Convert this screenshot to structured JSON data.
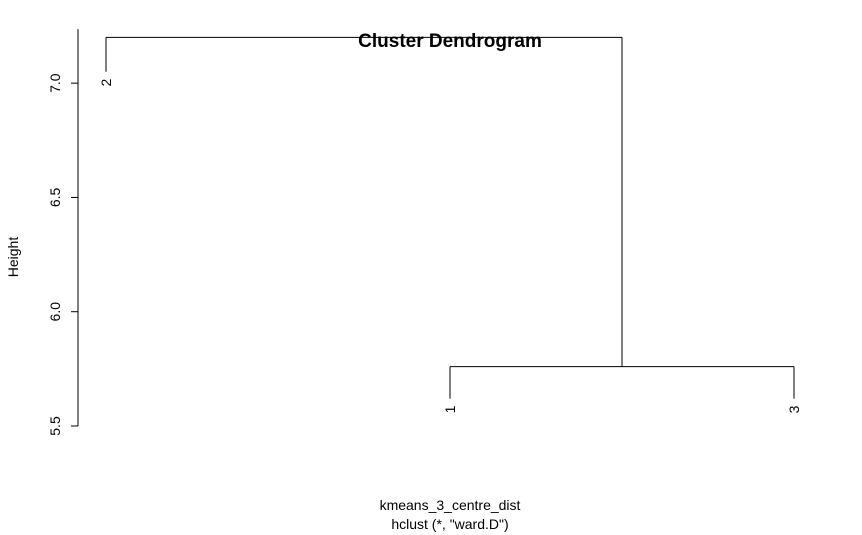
{
  "chart_data": {
    "type": "dendrogram",
    "title": "Cluster Dendrogram",
    "xlabel": "kmeans_3_centre_dist",
    "sublabel": "hclust (*, \"ward.D\")",
    "ylabel": "Height",
    "ylim": [
      5.5,
      7.25
    ],
    "yticks": [
      "5.5",
      "6.0",
      "6.5",
      "7.0"
    ],
    "ytick_values": [
      5.5,
      6.0,
      6.5,
      7.0
    ],
    "leaves": [
      "2",
      "1",
      "3"
    ],
    "leaf_values": [
      7.05,
      5.62,
      5.62
    ],
    "merges": [
      {
        "left": "1",
        "right": "3",
        "height": 5.76
      },
      {
        "left": "2",
        "right": "(1,3)",
        "height": 7.2
      }
    ],
    "grid": false,
    "colors": {
      "line": "#000000",
      "background": "#ffffff"
    }
  }
}
